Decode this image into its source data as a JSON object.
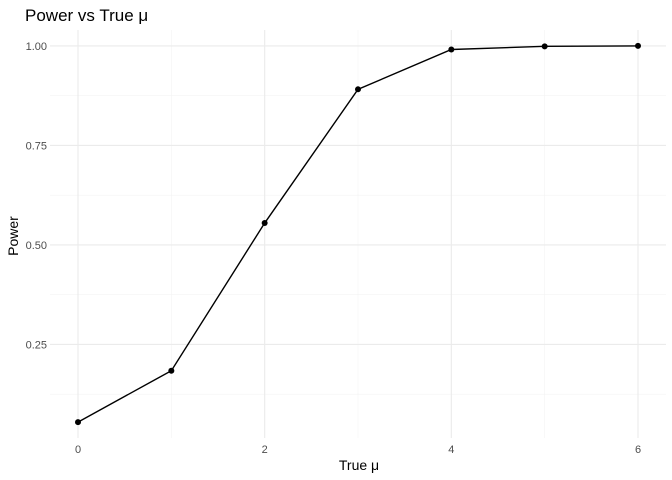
{
  "chart_data": {
    "type": "line",
    "title": "Power vs True μ",
    "xlabel": "True μ",
    "ylabel": "Power",
    "x": [
      0,
      1,
      2,
      3,
      4,
      5,
      6
    ],
    "series": [
      {
        "values": [
          0.055,
          0.184,
          0.555,
          0.891,
          0.991,
          0.999,
          1.0
        ]
      }
    ],
    "xlim": [
      -0.3,
      6.3
    ],
    "ylim": [
      0.015,
      1.04
    ],
    "x_ticks": [
      0,
      2,
      4,
      6
    ],
    "x_tick_labels": [
      "0",
      "2",
      "4",
      "6"
    ],
    "x_minor_ticks": [
      1,
      3,
      5
    ],
    "y_ticks": [
      0.25,
      0.5,
      0.75,
      1.0
    ],
    "y_tick_labels": [
      "0.25",
      "0.50",
      "0.75",
      "1.00"
    ],
    "y_minor_ticks": [
      0.125,
      0.375,
      0.625,
      0.875
    ],
    "grid": true,
    "legend": "none",
    "line_color": "#000000",
    "grid_color": "#ebebeb"
  }
}
